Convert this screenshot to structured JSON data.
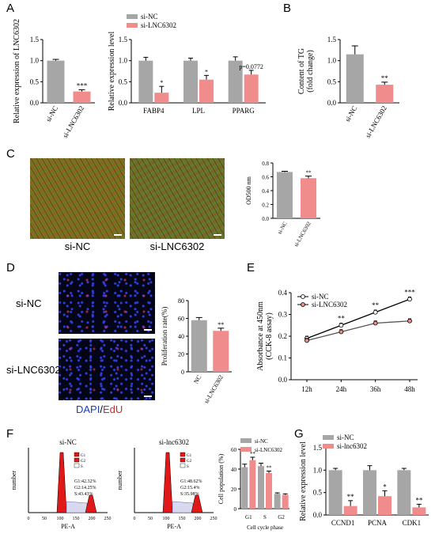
{
  "panels": {
    "A": "A",
    "B": "B",
    "C": "C",
    "D": "D",
    "E": "E",
    "F": "F",
    "G": "G"
  },
  "colors": {
    "nc": "#a6a6a6",
    "si": "#f08c8c",
    "si_dark": "#e06060"
  },
  "panelC_images": {
    "left_label": "si-NC",
    "right_label": "si-LNC6302"
  },
  "panelD_images": {
    "row1_label": "si-NC",
    "row2_label": "si-LNC6302",
    "stain_dapi": "DAPI",
    "stain_sep": "/",
    "stain_edu": "EdU"
  },
  "panelF_flow": {
    "left_title": "si-NC",
    "right_title": "si-lnc6302",
    "ylabel": "number",
    "xlabel": "PE-A",
    "legend": [
      "G1",
      "G2",
      "S"
    ],
    "left_stats": [
      "G1:42.32%",
      "G2:14.25%",
      "S:43.43%"
    ],
    "right_stats": [
      "G1:48.62%",
      "G2:15.4%",
      "S:35.98%"
    ],
    "xticks": [
      "0",
      "50",
      "100",
      "150",
      "200",
      "250"
    ]
  },
  "chart_data": [
    {
      "id": "A1",
      "type": "bar",
      "categories": [
        "si-NC",
        "si-LNC6302"
      ],
      "values": [
        1.0,
        0.27
      ],
      "errors": [
        0.03,
        0.04
      ],
      "ylabel": "Relative expression of LNC6302",
      "ylim": [
        0,
        1.5
      ],
      "yticks": [
        "0.0",
        "0.5",
        "1.0",
        "1.5"
      ],
      "significance": [
        "",
        "***"
      ]
    },
    {
      "id": "A2",
      "type": "bar",
      "categories": [
        "FABP4",
        "LPL",
        "PPARG"
      ],
      "series": [
        {
          "name": "si-NC",
          "values": [
            1.0,
            1.0,
            1.0
          ],
          "errors": [
            0.08,
            0.06,
            0.09
          ]
        },
        {
          "name": "si-LNC6302",
          "values": [
            0.24,
            0.55,
            0.67
          ],
          "errors": [
            0.15,
            0.1,
            0.1
          ]
        }
      ],
      "ylabel": "Relative expression level",
      "ylim": [
        0,
        1.5
      ],
      "yticks": [
        "0.0",
        "0.5",
        "1.0",
        "1.5"
      ],
      "significance": [
        "*",
        "*",
        "p=0.0772"
      ]
    },
    {
      "id": "B",
      "type": "bar",
      "categories": [
        "si-NC",
        "si-LNC6302"
      ],
      "values": [
        1.15,
        0.43
      ],
      "errors": [
        0.2,
        0.06
      ],
      "ylabel": "Content of TG\n(fold change)",
      "ylim": [
        0,
        1.5
      ],
      "yticks": [
        "0.0",
        "0.5",
        "1.0",
        "1.5"
      ],
      "significance": [
        "",
        "**"
      ]
    },
    {
      "id": "C",
      "type": "bar",
      "categories": [
        "si-NC",
        "si-LNC6302"
      ],
      "values": [
        0.67,
        0.58
      ],
      "errors": [
        0.01,
        0.03
      ],
      "ylabel": "OD500 nm",
      "ylim": [
        0,
        0.8
      ],
      "yticks": [
        "0.0",
        "0.2",
        "0.4",
        "0.6",
        "0.8"
      ],
      "significance": [
        "",
        "**"
      ]
    },
    {
      "id": "D",
      "type": "bar",
      "categories": [
        "NC",
        "si-LNC6302"
      ],
      "values": [
        58,
        46
      ],
      "errors": [
        3,
        3
      ],
      "ylabel": "Proliferation rate(%)",
      "ylim": [
        0,
        80
      ],
      "yticks": [
        "0",
        "20",
        "40",
        "60",
        "80"
      ],
      "significance": [
        "",
        "**"
      ]
    },
    {
      "id": "E",
      "type": "line",
      "x": [
        "12h",
        "24h",
        "36h",
        "48h"
      ],
      "series": [
        {
          "name": "si-NC",
          "values": [
            0.19,
            0.25,
            0.31,
            0.37
          ]
        },
        {
          "name": "si-LNC6302",
          "values": [
            0.18,
            0.22,
            0.26,
            0.27
          ]
        }
      ],
      "ylabel": "Absorbance at 450nm\n(CCK-8 assay)",
      "ylim": [
        0.0,
        0.4
      ],
      "yticks": [
        "0.0",
        "0.1",
        "0.2",
        "0.3",
        "0.4"
      ],
      "significance": [
        "",
        "**",
        "**",
        "***"
      ]
    },
    {
      "id": "F",
      "type": "bar",
      "categories": [
        "G1",
        "S",
        "G2"
      ],
      "series": [
        {
          "name": "si-NC",
          "values": [
            42,
            43,
            15
          ],
          "errors": [
            3,
            3,
            1
          ]
        },
        {
          "name": "si-LNC6302",
          "values": [
            49,
            36,
            14
          ],
          "errors": [
            3,
            2,
            1
          ]
        }
      ],
      "ylabel": "Cell population (%)",
      "xlabel": "Cell cycle phase",
      "ylim": [
        0,
        60
      ],
      "yticks": [
        "0",
        "20",
        "40",
        "60"
      ],
      "significance": [
        "**",
        "**",
        ""
      ]
    },
    {
      "id": "G",
      "type": "bar",
      "categories": [
        "CCND1",
        "PCNA",
        "CDK1"
      ],
      "series": [
        {
          "name": "si-NC",
          "values": [
            1.0,
            1.0,
            1.0
          ],
          "errors": [
            0.04,
            0.1,
            0.04
          ]
        },
        {
          "name": "si-lnc6302",
          "values": [
            0.2,
            0.42,
            0.17
          ],
          "errors": [
            0.12,
            0.12,
            0.07
          ]
        }
      ],
      "ylabel": "Relative expression level",
      "ylim": [
        0,
        1.5
      ],
      "yticks": [
        "0.0",
        "0.5",
        "1.0",
        "1.5"
      ],
      "significance": [
        "**",
        "*",
        "**"
      ]
    }
  ]
}
